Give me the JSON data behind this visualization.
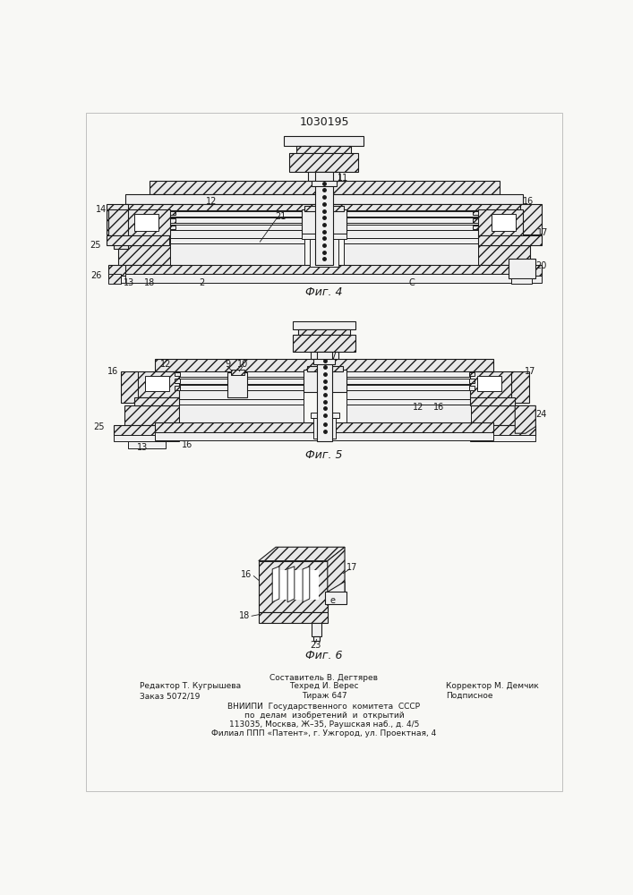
{
  "patent_number": "1030195",
  "bg": "#f8f8f5",
  "lc": "#1a1a1a",
  "fc_hatch": "#e8e8e8",
  "fc_white": "#ffffff",
  "fc_light": "#f0f0f0",
  "fig4_caption": "Фиг. 4",
  "fig5_caption": "Фиг. 5",
  "fig6_caption": "Фиг. 6",
  "footer_left1": "Редактор Т. Кугрышева",
  "footer_left2": "Заказ 5072/19",
  "footer_mid1": "Составитель В. Дегтярев",
  "footer_mid2": "Техред И. Верес",
  "footer_mid3": "Тираж 647",
  "footer_right1": "Корректор М. Демчик",
  "footer_right2": "Подписное",
  "footer_org1": "ВНИИПИ  Государственного  комитета  СССР",
  "footer_org2": "по  делам  изобретений  и  открытий",
  "footer_org3": "113035, Москва, Ж–35, Раушская наб., д. 4/5",
  "footer_org4": "Филиал ППП «Патент», г. Ужгород, ул. Проектная, 4"
}
